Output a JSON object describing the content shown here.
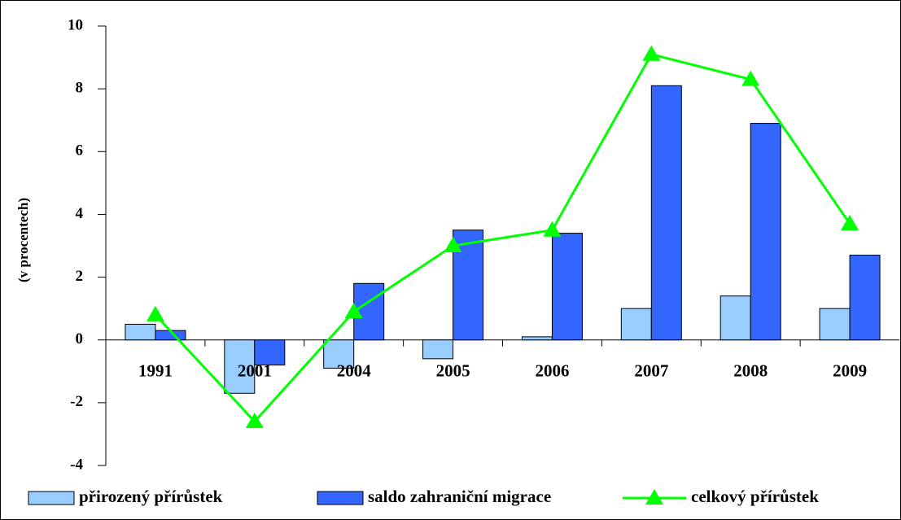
{
  "chart_data": {
    "type": "bar",
    "y_label": "(v procentech)",
    "categories": [
      "1991",
      "2001",
      "2004",
      "2005",
      "2006",
      "2007",
      "2008",
      "2009"
    ],
    "series": [
      {
        "name": "přirozený přírůstek",
        "color": "#99ccff",
        "values": [
          0.5,
          -1.7,
          -0.9,
          -0.6,
          0.1,
          1.0,
          1.4,
          1.0
        ]
      },
      {
        "name": "saldo zahraniční migrace",
        "color": "#3366ff",
        "values": [
          0.3,
          -0.8,
          1.8,
          3.5,
          3.4,
          8.1,
          6.9,
          2.7
        ]
      },
      {
        "name": "celkový přírůstek",
        "type": "line",
        "color": "#00ff00",
        "values": [
          0.8,
          -2.6,
          0.9,
          3.0,
          3.5,
          9.1,
          8.3,
          3.7
        ]
      }
    ],
    "ylim": [
      -4,
      10
    ],
    "yticks": [
      -4,
      -2,
      0,
      2,
      4,
      6,
      8,
      10
    ],
    "legend": "bottom"
  }
}
